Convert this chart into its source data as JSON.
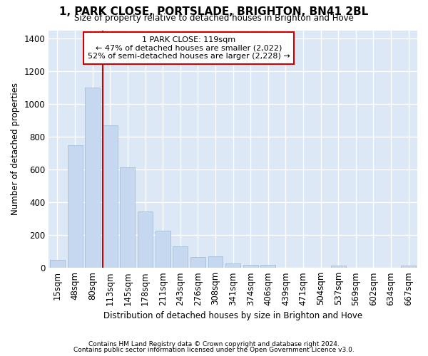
{
  "title": "1, PARK CLOSE, PORTSLADE, BRIGHTON, BN41 2BL",
  "subtitle": "Size of property relative to detached houses in Brighton and Hove",
  "xlabel": "Distribution of detached houses by size in Brighton and Hove",
  "ylabel": "Number of detached properties",
  "footer_line1": "Contains HM Land Registry data © Crown copyright and database right 2024.",
  "footer_line2": "Contains public sector information licensed under the Open Government Licence v3.0.",
  "bar_labels": [
    "15sqm",
    "48sqm",
    "80sqm",
    "113sqm",
    "145sqm",
    "178sqm",
    "211sqm",
    "243sqm",
    "276sqm",
    "308sqm",
    "341sqm",
    "374sqm",
    "406sqm",
    "439sqm",
    "471sqm",
    "504sqm",
    "537sqm",
    "569sqm",
    "602sqm",
    "634sqm",
    "667sqm"
  ],
  "bar_heights": [
    50,
    750,
    1100,
    870,
    615,
    345,
    225,
    130,
    65,
    70,
    25,
    20,
    20,
    0,
    0,
    0,
    15,
    0,
    0,
    0,
    15
  ],
  "annotation_line1": "1 PARK CLOSE: 119sqm",
  "annotation_line2": "← 47% of detached houses are smaller (2,022)",
  "annotation_line3": "52% of semi-detached houses are larger (2,228) →",
  "vline_pos": 3.0,
  "bar_color": "#c5d8f0",
  "bar_edge_color": "#9ab8d8",
  "vline_color": "#cc0000",
  "ylim_max": 1450,
  "fig_bg": "#ffffff",
  "plot_bg": "#dce8f5",
  "grid_color": "#ffffff",
  "ann_bg": "#ffffff",
  "ann_edge": "#cc0000",
  "yticks": [
    0,
    200,
    400,
    600,
    800,
    1000,
    1200,
    1400
  ]
}
